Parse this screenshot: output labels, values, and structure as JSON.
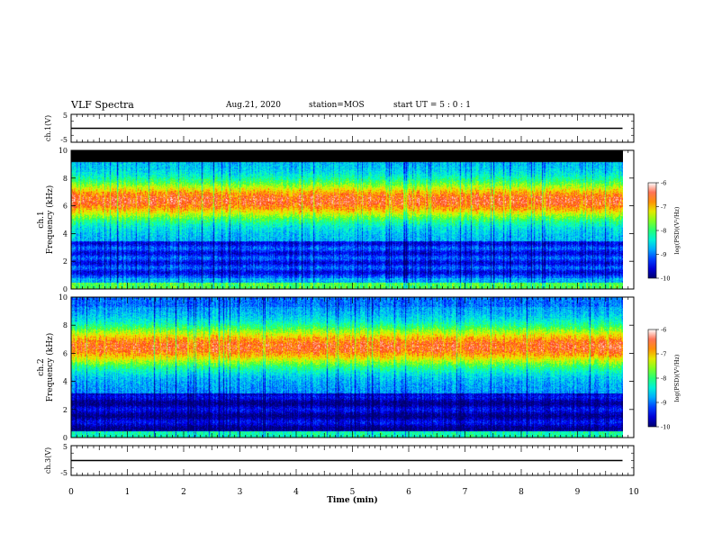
{
  "header": {
    "title": "VLF Spectra",
    "date": "Aug.21, 2020",
    "station": "station=MOS",
    "start": "start  UT =  5 : 0  : 1"
  },
  "chart_data": [
    {
      "type": "line",
      "id": "ch1-voltage",
      "ylabel": "ch.1(V)",
      "ylim": [
        -5,
        5
      ],
      "yticks": [
        "5",
        "-5"
      ],
      "series": [
        {
          "x": [
            0,
            9.8
          ],
          "values": [
            0,
            0
          ]
        }
      ]
    },
    {
      "type": "heatmap",
      "id": "ch1-spectrogram",
      "ylabel": "ch.1 Frequency (kHz)",
      "ylim": [
        0,
        10
      ],
      "yticks": [
        "0",
        "2",
        "4",
        "6",
        "8",
        "10"
      ],
      "xlim": [
        0,
        10
      ],
      "data_end_min": 9.8,
      "colorbar": {
        "label": "log(PSD)(V²/Hz)",
        "range": [
          -10,
          -6
        ],
        "ticks": [
          "-6",
          "-7",
          "-8",
          "-9",
          "-10"
        ]
      }
    },
    {
      "type": "heatmap",
      "id": "ch2-spectrogram",
      "ylabel": "ch.2 Frequency (kHz)",
      "ylim": [
        0,
        10
      ],
      "yticks": [
        "0",
        "2",
        "4",
        "6",
        "8",
        "10"
      ],
      "xlim": [
        0,
        10
      ],
      "data_end_min": 9.8,
      "colorbar": {
        "label": "log(PSD)(V²/Hz)",
        "range": [
          -10,
          -6
        ],
        "ticks": [
          "-6",
          "-7",
          "-8",
          "-9",
          "-10"
        ]
      }
    },
    {
      "type": "line",
      "id": "ch3-voltage",
      "ylabel": "ch.3(V)",
      "ylim": [
        -5,
        5
      ],
      "yticks": [
        "5",
        "-5"
      ],
      "series": [
        {
          "x": [
            0,
            9.8
          ],
          "values": [
            0,
            0
          ]
        }
      ]
    }
  ],
  "xaxis": {
    "label": "Time  (min)",
    "ticks": [
      "0",
      "1",
      "2",
      "3",
      "4",
      "5",
      "6",
      "7",
      "8",
      "9",
      "10"
    ]
  },
  "colors": {
    "axis": "#000000",
    "background": "#ffffff"
  }
}
